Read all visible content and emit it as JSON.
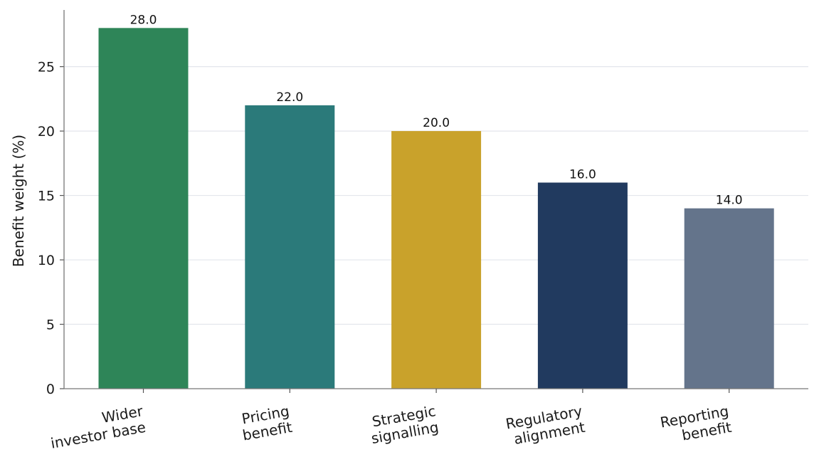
{
  "chart_data": {
    "type": "bar",
    "categories": [
      [
        "Wider",
        "investor base"
      ],
      [
        "Pricing",
        "benefit"
      ],
      [
        "Strategic",
        "signalling"
      ],
      [
        "Regulatory",
        "alignment"
      ],
      [
        "Reporting",
        "benefit"
      ]
    ],
    "values": [
      28.0,
      22.0,
      20.0,
      16.0,
      14.0
    ],
    "value_labels": [
      "28.0",
      "22.0",
      "20.0",
      "16.0",
      "14.0"
    ],
    "colors": [
      "#2e8558",
      "#2b7a7a",
      "#c9a22b",
      "#213a5f",
      "#64748b"
    ],
    "title": "",
    "xlabel": "",
    "ylabel": "Benefit weight (%)",
    "ylim": [
      0,
      29.4
    ],
    "yticks": [
      0,
      5,
      10,
      15,
      20,
      25
    ],
    "grid": "horizontal",
    "legend": "none"
  }
}
